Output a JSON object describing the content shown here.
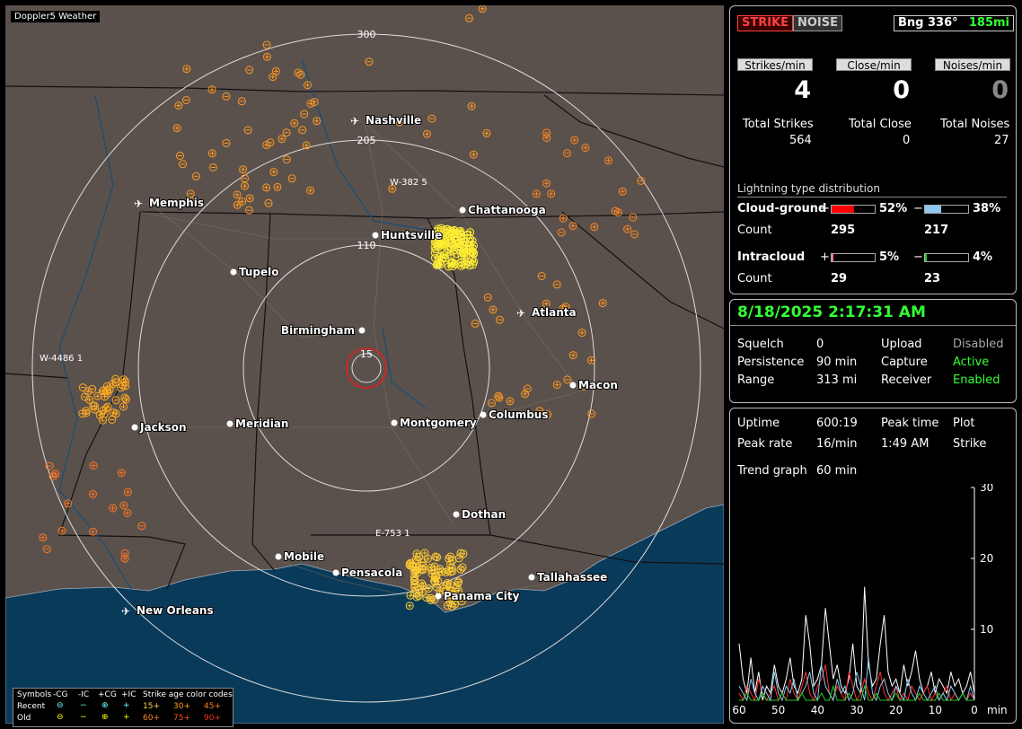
{
  "app": {
    "credit": "Doppler5 Weather"
  },
  "map": {
    "ring_labels": [
      "15",
      "110",
      "205",
      "300"
    ],
    "cities": [
      {
        "name": "Nashville",
        "airport": true
      },
      {
        "name": "Memphis",
        "airport": true
      },
      {
        "name": "Chattanooga",
        "airport": false
      },
      {
        "name": "Huntsville",
        "airport": false
      },
      {
        "name": "Tupelo",
        "airport": false
      },
      {
        "name": "Atlanta",
        "airport": true
      },
      {
        "name": "Birmingham",
        "airport": false
      },
      {
        "name": "Macon",
        "airport": false
      },
      {
        "name": "Jackson",
        "airport": false
      },
      {
        "name": "Meridian",
        "airport": false
      },
      {
        "name": "Montgomery",
        "airport": false
      },
      {
        "name": "Columbus",
        "airport": false
      },
      {
        "name": "Dothan",
        "airport": false
      },
      {
        "name": "Mobile",
        "airport": false
      },
      {
        "name": "Pensacola",
        "airport": false
      },
      {
        "name": "Tallahassee",
        "airport": false
      },
      {
        "name": "Panama City",
        "airport": false
      },
      {
        "name": "New Orleans",
        "airport": true
      }
    ],
    "storm_labels": [
      "W-382 5",
      "W-4486 1",
      "E-753 1"
    ],
    "legend": {
      "symbols": "Symbols",
      "headers": [
        "-CG",
        "-IC",
        "+CG",
        "+IC"
      ],
      "recent": "Recent",
      "old": "Old",
      "age_title": "Strike age color codes",
      "ages_row1": [
        "15+",
        "30+",
        "45+"
      ],
      "ages_row2": [
        "60+",
        "75+",
        "90+"
      ]
    }
  },
  "top": {
    "strike_label": "STRIKE",
    "noise_label": "NOISE",
    "bearing": "Bng 336°",
    "distance": "185mi",
    "strikes_min_label": "Strikes/min",
    "close_min_label": "Close/min",
    "noises_min_label": "Noises/min",
    "strikes_min": "4",
    "close_min": "0",
    "noises_min": "0",
    "total_strikes_label": "Total Strikes",
    "total_close_label": "Total Close",
    "total_noises_label": "Total Noises",
    "total_strikes": "564",
    "total_close": "0",
    "total_noises": "27",
    "dist_title": "Lightning type distribution",
    "cg_label": "Cloud-ground",
    "ic_label": "Intracloud",
    "count_label": "Count",
    "plus": "+",
    "minus": "−",
    "cg_pos_pct": "52%",
    "cg_neg_pct": "38%",
    "cg_pos_count": "295",
    "cg_neg_count": "217",
    "ic_pos_pct": "5%",
    "ic_neg_pct": "4%",
    "ic_pos_count": "29",
    "ic_neg_count": "23",
    "cg_pos_frac": 0.52,
    "cg_neg_frac": 0.38,
    "ic_pos_frac": 0.05,
    "ic_neg_frac": 0.04,
    "colors": {
      "cg_pos": "#ff0000",
      "cg_neg": "#8ec8f0",
      "ic_pos": "#ff6fa8",
      "ic_neg": "#22cc22"
    }
  },
  "status": {
    "datetime": "8/18/2025 2:17:31 AM",
    "squelch_label": "Squelch",
    "squelch": "0",
    "persistence_label": "Persistence",
    "persistence": "90 min",
    "range_label": "Range",
    "range": "313 mi",
    "upload_label": "Upload",
    "upload": "Disabled",
    "capture_label": "Capture",
    "capture": "Active",
    "receiver_label": "Receiver",
    "receiver": "Enabled"
  },
  "stats": {
    "uptime_label": "Uptime",
    "uptime": "600:19",
    "peak_time_label": "Peak time",
    "peak_time": "1:49 AM",
    "plot_label": "Plot",
    "plot": "Strike",
    "peak_rate_label": "Peak rate",
    "peak_rate": "16/min",
    "trend_label": "Trend graph",
    "trend": "60 min"
  },
  "chart_data": {
    "type": "line",
    "x_ticks": [
      "60",
      "50",
      "40",
      "30",
      "20",
      "10",
      "0"
    ],
    "x_unit": "min",
    "y_ticks": [
      "30",
      "20",
      "10"
    ],
    "ylim": [
      0,
      30
    ],
    "xlim": [
      60,
      0
    ],
    "series": [
      {
        "color": "#ffffff",
        "values": [
          8,
          3,
          1,
          6,
          1,
          4,
          0,
          2,
          1,
          5,
          2,
          1,
          3,
          6,
          2,
          1,
          3,
          12,
          8,
          2,
          3,
          5,
          13,
          8,
          3,
          5,
          2,
          1,
          3,
          8,
          2,
          1,
          16,
          5,
          2,
          3,
          8,
          12,
          4,
          2,
          3,
          1,
          5,
          2,
          4,
          7,
          3,
          1,
          2,
          4,
          1,
          3,
          2,
          1,
          4,
          2,
          3,
          1,
          2,
          4,
          1
        ]
      },
      {
        "color": "#ff3030",
        "values": [
          1,
          0,
          2,
          1,
          0,
          3,
          1,
          0,
          1,
          2,
          0,
          1,
          0,
          3,
          1,
          0,
          2,
          4,
          1,
          0,
          2,
          3,
          5,
          1,
          0,
          2,
          1,
          0,
          4,
          2,
          0,
          1,
          3,
          1,
          0,
          2,
          4,
          1,
          0,
          1,
          2,
          0,
          1,
          0,
          2,
          1,
          0,
          1,
          2,
          0,
          1,
          0,
          1,
          2,
          0,
          1,
          0,
          1,
          0,
          1,
          0
        ]
      },
      {
        "color": "#8ec8f0",
        "values": [
          2,
          1,
          0,
          3,
          1,
          0,
          2,
          1,
          0,
          4,
          1,
          0,
          2,
          1,
          3,
          0,
          1,
          2,
          4,
          1,
          0,
          5,
          2,
          1,
          0,
          3,
          1,
          2,
          0,
          1,
          4,
          2,
          0,
          6,
          1,
          0,
          2,
          3,
          1,
          0,
          2,
          1,
          0,
          3,
          1,
          0,
          2,
          1,
          0,
          1,
          2,
          0,
          1,
          0,
          2,
          1,
          0,
          1,
          0,
          2,
          0
        ]
      },
      {
        "color": "#22cc22",
        "values": [
          0,
          0,
          1,
          0,
          0,
          0,
          1,
          0,
          0,
          0,
          0,
          1,
          0,
          0,
          0,
          0,
          1,
          0,
          0,
          0,
          0,
          1,
          0,
          0,
          2,
          0,
          0,
          0,
          1,
          0,
          0,
          0,
          2,
          0,
          0,
          1,
          0,
          0,
          0,
          0,
          1,
          0,
          0,
          0,
          0,
          0,
          1,
          0,
          0,
          0,
          0,
          1,
          0,
          0,
          0,
          0,
          0,
          1,
          0,
          0,
          0
        ]
      }
    ]
  }
}
